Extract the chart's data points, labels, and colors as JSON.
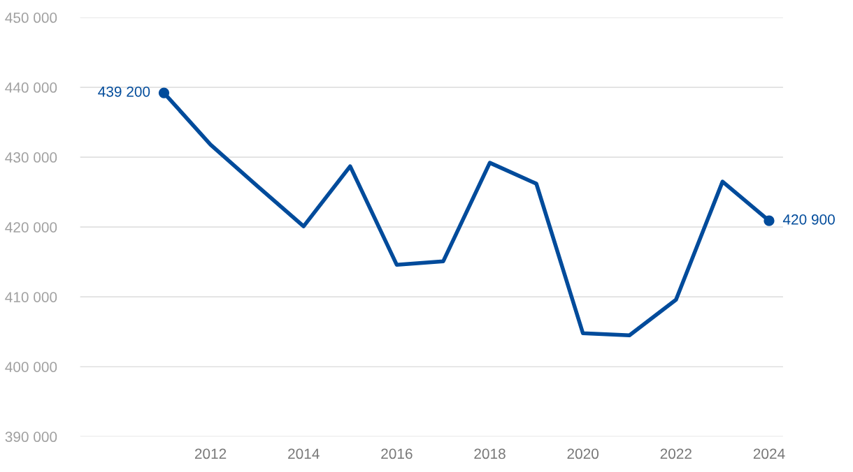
{
  "chart_data": {
    "type": "line",
    "x": [
      2011,
      2012,
      2013,
      2014,
      2015,
      2016,
      2017,
      2018,
      2019,
      2020,
      2021,
      2022,
      2023,
      2024
    ],
    "series": [
      {
        "color": "#004b9b",
        "values": [
          439200,
          431800,
          425900,
          420100,
          428700,
          414600,
          415100,
          429200,
          426200,
          404800,
          404500,
          409600,
          426500,
          420900
        ],
        "value_labels": [
          "439 200",
          null,
          null,
          null,
          null,
          null,
          null,
          null,
          null,
          null,
          null,
          null,
          null,
          "420 900"
        ]
      }
    ],
    "xlim": [
      2009.2,
      2024.3
    ],
    "xticks": [
      2012,
      2014,
      2016,
      2018,
      2020,
      2022,
      2024
    ],
    "ylim": [
      390000,
      450000
    ],
    "yticks": [
      {
        "value": 390000,
        "label": "390 000"
      },
      {
        "value": 400000,
        "label": "400 000"
      },
      {
        "value": 410000,
        "label": "410 000"
      },
      {
        "value": 420000,
        "label": "420 000"
      },
      {
        "value": 430000,
        "label": "430 000"
      },
      {
        "value": 440000,
        "label": "440 000"
      },
      {
        "value": 450000,
        "label": "450 000"
      }
    ],
    "grid": "y",
    "line_style": "solid"
  }
}
